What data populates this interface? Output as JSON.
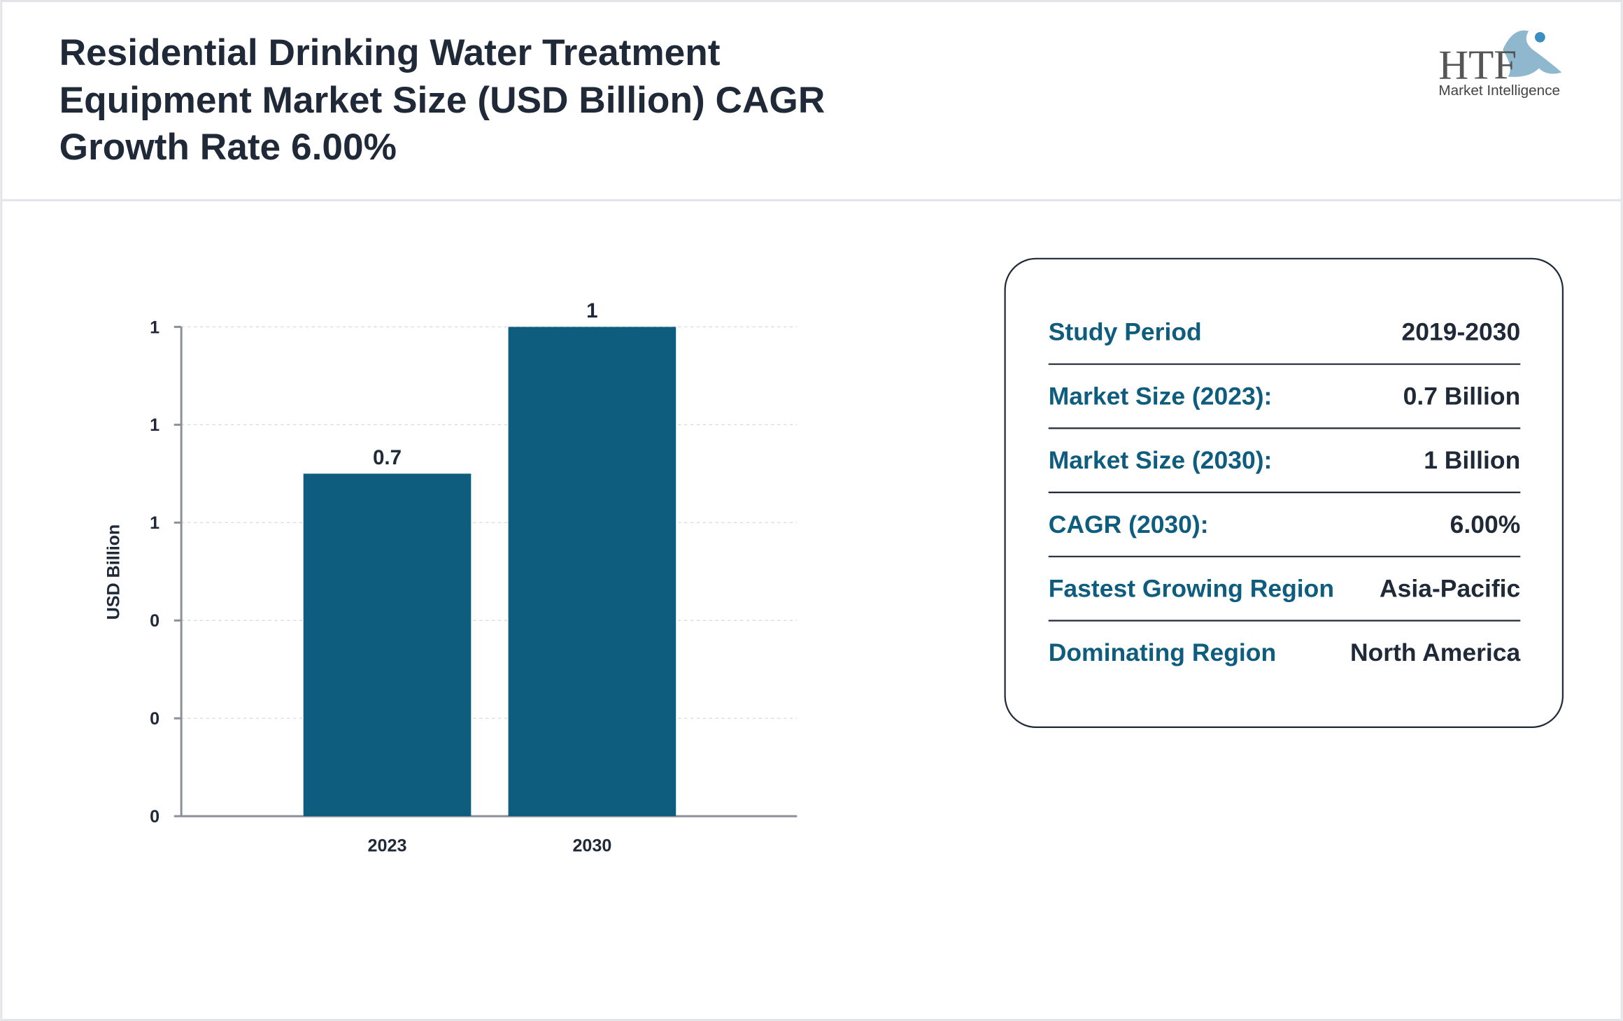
{
  "header": {
    "title": "Residential Drinking Water Treatment Equipment Market Size (USD Billion) CAGR Growth Rate 6.00%",
    "logo": {
      "mark": "HTF",
      "tagline": "Market Intelligence"
    }
  },
  "chart_data": {
    "type": "bar",
    "y_label": "USD Billion",
    "categories": [
      "2023",
      "2030"
    ],
    "values": [
      0.7,
      1
    ],
    "color": "#0e5c7e",
    "ylim": [
      0,
      1
    ],
    "yticks": [
      0,
      {
        "value": 0.2,
        "label": "0"
      },
      {
        "value": 0.4,
        "label": "0"
      },
      {
        "value": 0.6,
        "label": "1"
      },
      {
        "value": 0.8,
        "label": "1"
      },
      1
    ],
    "grid": true
  },
  "info": {
    "rows": [
      [
        "Study Period",
        "2019-2030"
      ],
      [
        "Market Size (2023):",
        "0.7 Billion"
      ],
      [
        "Market Size (2030):",
        "1 Billion"
      ],
      [
        "CAGR (2030):",
        "6.00%"
      ],
      [
        "Fastest Growing Region",
        "Asia-Pacific"
      ],
      [
        "Dominating Region",
        "North America"
      ]
    ]
  }
}
